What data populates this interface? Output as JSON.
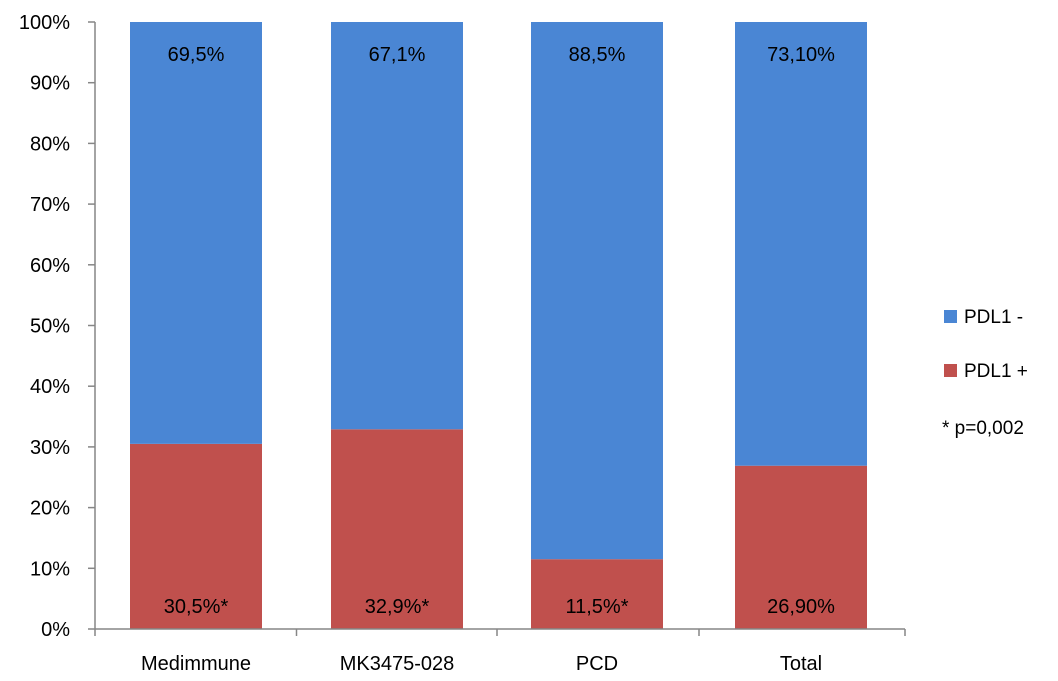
{
  "chart_data": {
    "type": "bar",
    "stacked": true,
    "categories": [
      "Medimmune",
      "MK3475-028",
      "PCD",
      "Total"
    ],
    "series": [
      {
        "name": "PDL1 +",
        "color": "#c0504d",
        "values": [
          30.5,
          32.9,
          11.5,
          26.9
        ],
        "labels": [
          "30,5%*",
          "32,9%*",
          "11,5%*",
          "26,90%"
        ]
      },
      {
        "name": "PDL1 -",
        "color": "#4a86d4",
        "values": [
          69.5,
          67.1,
          88.5,
          73.1
        ],
        "labels": [
          "69,5%",
          "67,1%",
          "88,5%",
          "73,10%"
        ]
      }
    ],
    "ylim": [
      0,
      100
    ],
    "yticks": [
      0,
      10,
      20,
      30,
      40,
      50,
      60,
      70,
      80,
      90,
      100
    ],
    "ytick_labels": [
      "0%",
      "10%",
      "20%",
      "30%",
      "40%",
      "50%",
      "60%",
      "70%",
      "80%",
      "90%",
      "100%"
    ],
    "grid": false,
    "legend": {
      "position": "right",
      "entries": [
        "PDL1 -",
        "PDL1 +"
      ],
      "note": "*  p=0,002"
    }
  }
}
